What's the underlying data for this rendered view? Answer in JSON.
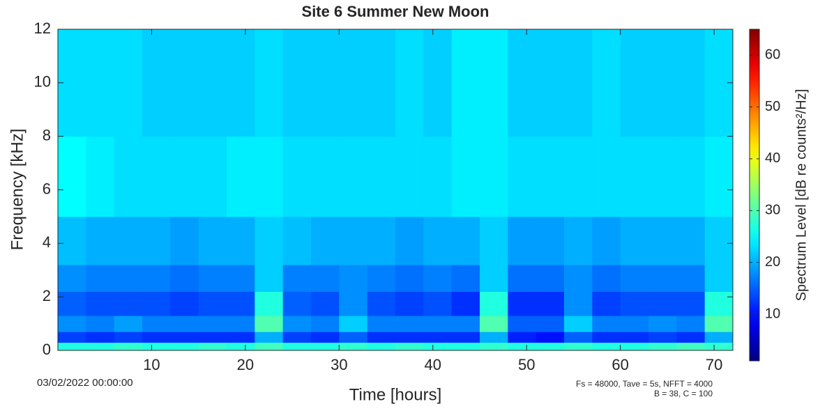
{
  "chart_data": {
    "type": "spectrogram",
    "title": "Site 6 Summer New Moon",
    "x_label": "Time [hours]",
    "y_label": "Frequency [kHz]",
    "annotations": [
      "03/02/2022 00:00:00",
      "Fs = 48000, Tave = 5s, NFFT = 4000",
      "B = 38, C = 100"
    ],
    "colormap": "jet",
    "xlim": [
      0,
      72
    ],
    "xticks": [
      10,
      20,
      30,
      40,
      50,
      60,
      70
    ],
    "ylim": [
      0,
      12
    ],
    "yticks": [
      0,
      2,
      4,
      6,
      8,
      10,
      12
    ],
    "xbins": [
      0,
      3,
      6,
      9,
      12,
      15,
      18,
      21,
      24,
      27,
      30,
      33,
      36,
      39,
      42,
      45,
      48,
      51,
      54,
      57,
      60,
      63,
      66,
      69,
      72
    ],
    "ybins": [
      0,
      0.3,
      0.7,
      1.3,
      2.2,
      3.2,
      5,
      8,
      12
    ],
    "values": [
      [
        27,
        27,
        28,
        27,
        27,
        28,
        27,
        29,
        27,
        27,
        28,
        27,
        28,
        27,
        27,
        28,
        27,
        27,
        28,
        27,
        27,
        28,
        29,
        28
      ],
      [
        13,
        12,
        13,
        12,
        12,
        12,
        12,
        20,
        13,
        12,
        15,
        12,
        12,
        12,
        12,
        20,
        11,
        10,
        15,
        12,
        12,
        13,
        12,
        20
      ],
      [
        18,
        17,
        19,
        17,
        17,
        17,
        17,
        30,
        18,
        17,
        22,
        17,
        17,
        17,
        17,
        30,
        15,
        15,
        22,
        17,
        17,
        18,
        17,
        30
      ],
      [
        15,
        14,
        14,
        14,
        13,
        14,
        14,
        27,
        15,
        14,
        18,
        14,
        13,
        14,
        12,
        27,
        12,
        12,
        18,
        13,
        14,
        14,
        14,
        27
      ],
      [
        18,
        17,
        17,
        17,
        16,
        17,
        17,
        22,
        17,
        17,
        18,
        17,
        16,
        17,
        16,
        22,
        16,
        16,
        18,
        16,
        17,
        17,
        17,
        22
      ],
      [
        21,
        20,
        20,
        20,
        19,
        20,
        20,
        22,
        21,
        20,
        20,
        20,
        19,
        20,
        20,
        22,
        19,
        19,
        20,
        19,
        20,
        20,
        20,
        22
      ],
      [
        25,
        24,
        23,
        23,
        23,
        23,
        24,
        24,
        23,
        23,
        23,
        23,
        23,
        23,
        24,
        24,
        23,
        23,
        23,
        23,
        23,
        23,
        23,
        24
      ],
      [
        23,
        23,
        23,
        22,
        22,
        22,
        22,
        23,
        22,
        22,
        22,
        22,
        23,
        22,
        24,
        24,
        22,
        22,
        22,
        23,
        22,
        22,
        22,
        23
      ]
    ],
    "colorbar": {
      "label": "Spectrum Level [dB re counts²/Hz]",
      "lim": [
        1,
        65
      ],
      "ticks": [
        10,
        20,
        30,
        40,
        50,
        60
      ]
    }
  }
}
